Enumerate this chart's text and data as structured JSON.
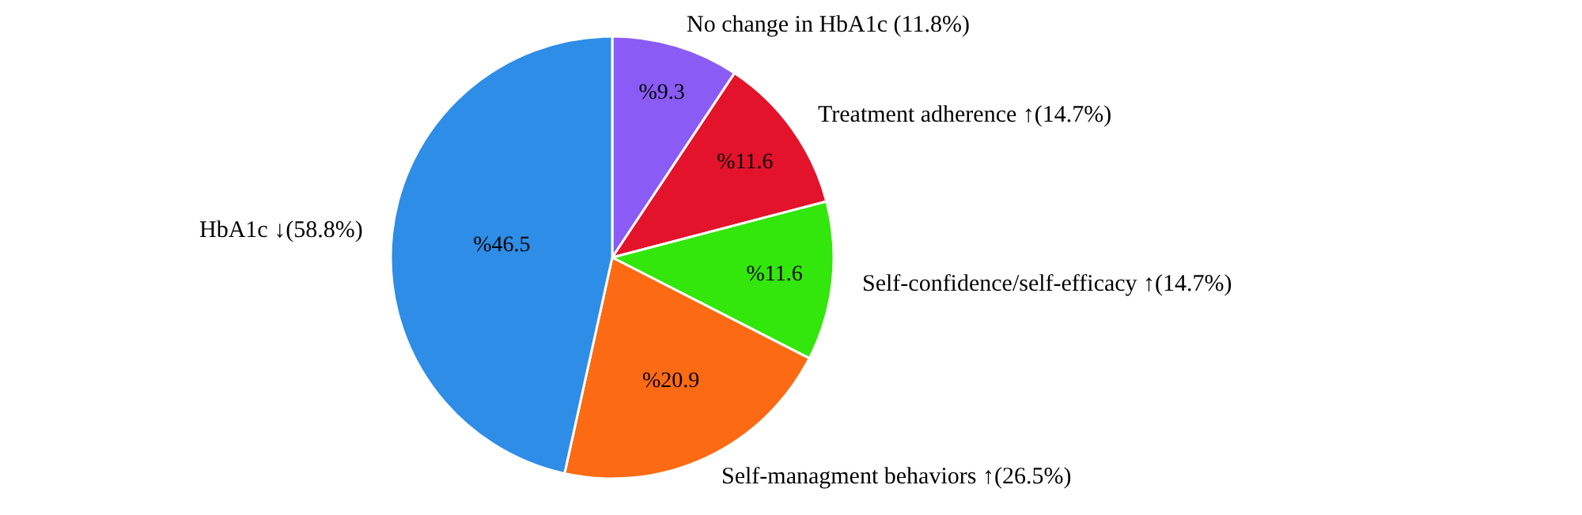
{
  "chart_data": {
    "type": "pie",
    "categories": [
      "No change in HbA1c (11.8%)",
      "Treatment adherence ↑(14.7%)",
      "Self-confidence/self-efficacy ↑(14.7%)",
      "Self-managment behaviors ↑(26.5%)",
      "HbA1c ↓(58.8%)"
    ],
    "values": [
      9.3,
      11.6,
      11.6,
      20.9,
      46.5
    ],
    "value_labels": [
      "%9.3",
      "%11.6",
      "%11.6",
      "%20.9",
      "%46.5"
    ],
    "colors": [
      "#8a5cf5",
      "#e3132b",
      "#33e60c",
      "#fc6a14",
      "#2e8de6"
    ],
    "legend": false
  }
}
